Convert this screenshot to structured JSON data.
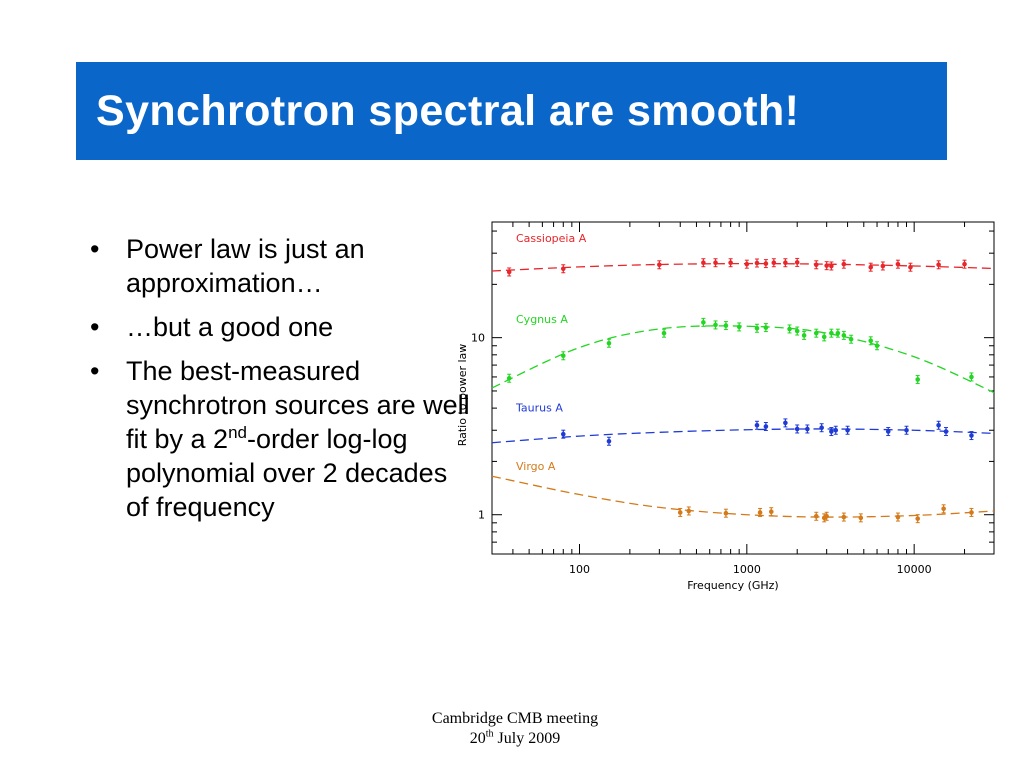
{
  "slide": {
    "title": "Synchrotron spectral are smooth!",
    "bullets": [
      {
        "text": "Power law is just an approximation…"
      },
      {
        "text": "…but a good one"
      },
      {
        "text_before": "The best-measured synchrotron sources are well fit by a 2",
        "sup": "nd",
        "text_after": "-order log-log polynomial over 2 decades of frequency"
      }
    ],
    "footer": {
      "line1": "Cambridge CMB meeting",
      "line2_before": "20",
      "line2_sup": "th",
      "line2_after": " July 2009"
    }
  },
  "colors": {
    "title_band": "#0b66c9",
    "title_text": "#ffffff"
  },
  "chart_data": {
    "type": "scatter",
    "x_label": "Frequency (GHz)",
    "y_label": "Ratio to power law",
    "x_scale": "log",
    "y_scale": "log",
    "xlim": [
      30,
      30000
    ],
    "ylim": [
      0.6,
      45
    ],
    "x_ticks": [
      100,
      1000,
      10000
    ],
    "x_tick_labels": [
      "100",
      "1000",
      "10000"
    ],
    "y_ticks": [
      1,
      10
    ],
    "y_tick_labels": [
      "1",
      "10"
    ],
    "legend_placement": "labels inside plot, left side, beside each curve",
    "series": [
      {
        "name": "Cassiopeia A",
        "color": "#e8262b",
        "x": [
          38,
          80,
          300,
          550,
          650,
          800,
          1000,
          1150,
          1300,
          1450,
          1700,
          2000,
          2600,
          3000,
          3200,
          3800,
          5500,
          6500,
          8000,
          9500,
          14000,
          20000
        ],
        "y": [
          23.5,
          24.5,
          25.8,
          26.5,
          26.5,
          26.5,
          26,
          26.4,
          26.2,
          26.5,
          26.5,
          26.6,
          25.8,
          25.5,
          25.4,
          26,
          25,
          25.4,
          26,
          25,
          25.8,
          26
        ],
        "fit_x": [
          30,
          100,
          300,
          1000,
          3000,
          10000,
          30000
        ],
        "fit_y": [
          23.8,
          25.1,
          25.9,
          26.2,
          26.0,
          25.4,
          24.6
        ]
      },
      {
        "name": "Cygnus A",
        "color": "#22d622",
        "x": [
          38,
          80,
          150,
          320,
          550,
          650,
          750,
          900,
          1150,
          1300,
          1800,
          2000,
          2200,
          2600,
          2900,
          3200,
          3500,
          3800,
          4200,
          5500,
          6000,
          10500,
          22000
        ],
        "y": [
          5.9,
          7.9,
          9.3,
          10.6,
          12.2,
          11.8,
          11.7,
          11.5,
          11.3,
          11.4,
          11.2,
          10.9,
          10.3,
          10.6,
          10.1,
          10.6,
          10.6,
          10.3,
          9.8,
          9.6,
          9.0,
          5.8,
          6.0
        ],
        "fit_x": [
          30,
          100,
          300,
          1000,
          3000,
          10000,
          30000
        ],
        "fit_y": [
          5.2,
          8.8,
          11.2,
          11.6,
          10.6,
          7.8,
          4.9
        ]
      },
      {
        "name": "Taurus A",
        "color": "#1f3bd6",
        "x": [
          80,
          150,
          1150,
          1300,
          1700,
          2000,
          2300,
          2800,
          3200,
          3400,
          4000,
          7000,
          9000,
          14000,
          15500,
          22000
        ],
        "y": [
          2.85,
          2.6,
          3.2,
          3.15,
          3.3,
          3.05,
          3.05,
          3.1,
          2.95,
          3.0,
          3.0,
          2.95,
          3.0,
          3.2,
          2.95,
          2.8
        ],
        "fit_x": [
          30,
          100,
          300,
          1000,
          3000,
          10000,
          30000
        ],
        "fit_y": [
          2.55,
          2.78,
          2.92,
          3.02,
          3.05,
          3.0,
          2.88
        ]
      },
      {
        "name": "Virgo A",
        "color": "#d47a1a",
        "x": [
          400,
          450,
          750,
          1200,
          1400,
          2600,
          2900,
          3000,
          3800,
          4800,
          8000,
          10500,
          15000,
          22000
        ],
        "y": [
          1.03,
          1.05,
          1.02,
          1.03,
          1.04,
          0.98,
          0.96,
          0.98,
          0.97,
          0.96,
          0.97,
          0.95,
          1.08,
          1.03
        ],
        "fit_x": [
          30,
          100,
          300,
          1000,
          3000,
          10000,
          30000
        ],
        "fit_y": [
          1.65,
          1.3,
          1.1,
          1.0,
          0.97,
          0.99,
          1.05
        ]
      }
    ]
  }
}
